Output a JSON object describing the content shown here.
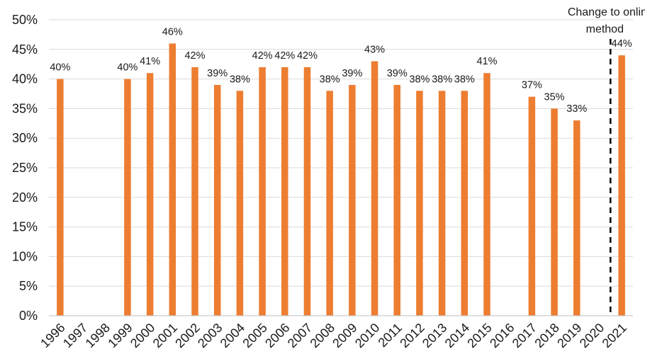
{
  "chart_data": {
    "type": "bar",
    "categories": [
      "1996",
      "1997",
      "1998",
      "1999",
      "2000",
      "2001",
      "2002",
      "2003",
      "2004",
      "2005",
      "2006",
      "2007",
      "2008",
      "2009",
      "2010",
      "2011",
      "2012",
      "2013",
      "2014",
      "2015",
      "2016",
      "2017",
      "2018",
      "2019",
      "2020",
      "2021"
    ],
    "values": [
      40,
      null,
      null,
      40,
      41,
      46,
      42,
      39,
      38,
      42,
      42,
      42,
      38,
      39,
      43,
      39,
      38,
      38,
      38,
      41,
      null,
      37,
      35,
      33,
      null,
      44
    ],
    "data_labels": [
      "40%",
      "",
      "",
      "40%",
      "41%",
      "46%",
      "42%",
      "39%",
      "38%",
      "42%",
      "42%",
      "42%",
      "38%",
      "39%",
      "43%",
      "39%",
      "38%",
      "38%",
      "38%",
      "41%",
      "",
      "37%",
      "35%",
      "33%",
      "",
      "44%"
    ],
    "ylim": [
      0,
      50
    ],
    "yticks": [
      0,
      5,
      10,
      15,
      20,
      25,
      30,
      35,
      40,
      45,
      50
    ],
    "ytick_labels": [
      "0%",
      "5%",
      "10%",
      "15%",
      "20%",
      "25%",
      "30%",
      "35%",
      "40%",
      "45%",
      "50%"
    ],
    "grid": true,
    "bar_color": "#ED7D31",
    "annotation": {
      "line1": "Change to online",
      "line2": "method",
      "position_between": [
        "2020",
        "2021"
      ],
      "line_style": "dashed",
      "line_color": "#000000"
    }
  }
}
